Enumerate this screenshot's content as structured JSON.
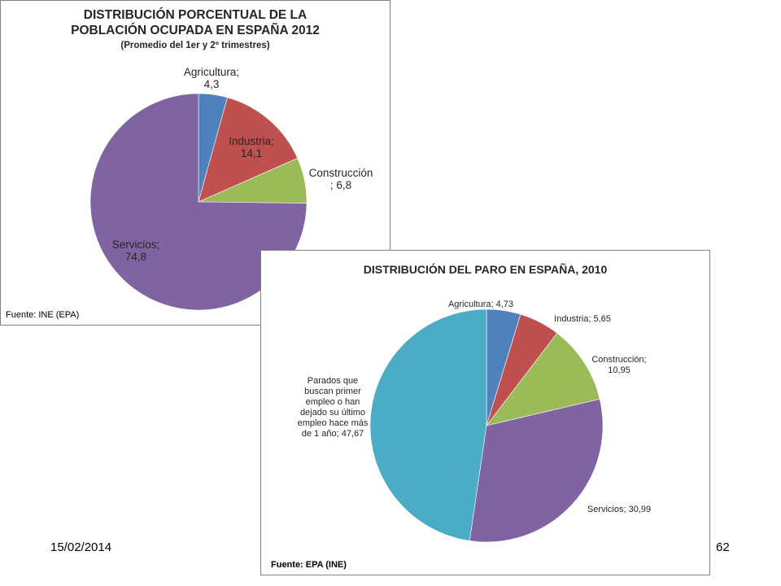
{
  "slide": {
    "date": "15/02/2014",
    "page_number": "62"
  },
  "chart_data": [
    {
      "type": "pie",
      "title": "DISTRIBUCIÓN PORCENTUAL DE LA POBLACIÓN OCUPADA EN ESPAÑA 2012",
      "title_lines": [
        "DISTRIBUCIÓN PORCENTUAL DE LA",
        "POBLACIÓN OCUPADA EN ESPAÑA 2012"
      ],
      "subtitle": "(Promedio del 1er y 2º trimestres)",
      "source": "Fuente: INE (EPA)",
      "slices": [
        {
          "label_lines": [
            "Agricultura;",
            "4,3"
          ],
          "value": 4.3,
          "color": "#4f81bd"
        },
        {
          "label_lines": [
            "Industria;",
            "14,1"
          ],
          "value": 14.1,
          "color": "#c0504d"
        },
        {
          "label_lines": [
            "Construcción",
            "; 6,8"
          ],
          "value": 6.8,
          "color": "#9bbb59"
        },
        {
          "label_lines": [
            "Servicios;",
            "74,8"
          ],
          "value": 74.8,
          "color": "#8064a2"
        }
      ]
    },
    {
      "type": "pie",
      "title": "DISTRIBUCIÓN DEL PARO EN ESPAÑA, 2010",
      "source": "Fuente: EPA (INE)",
      "slices": [
        {
          "label_lines": [
            "Agricultura; 4,73"
          ],
          "value": 4.73,
          "color": "#4f81bd"
        },
        {
          "label_lines": [
            "Industria; 5,65"
          ],
          "value": 5.65,
          "color": "#c0504d"
        },
        {
          "label_lines": [
            "Construcción;",
            "10,95"
          ],
          "value": 10.95,
          "color": "#9bbb59"
        },
        {
          "label_lines": [
            "Servicios; 30,99"
          ],
          "value": 30.99,
          "color": "#8064a2"
        },
        {
          "label_lines": [
            "Parados que",
            "buscan primer",
            "empleo o han",
            "dejado su último",
            "empleo hace más",
            "de 1 año; 47,67"
          ],
          "value": 47.67,
          "color": "#4bacc6"
        }
      ]
    }
  ]
}
